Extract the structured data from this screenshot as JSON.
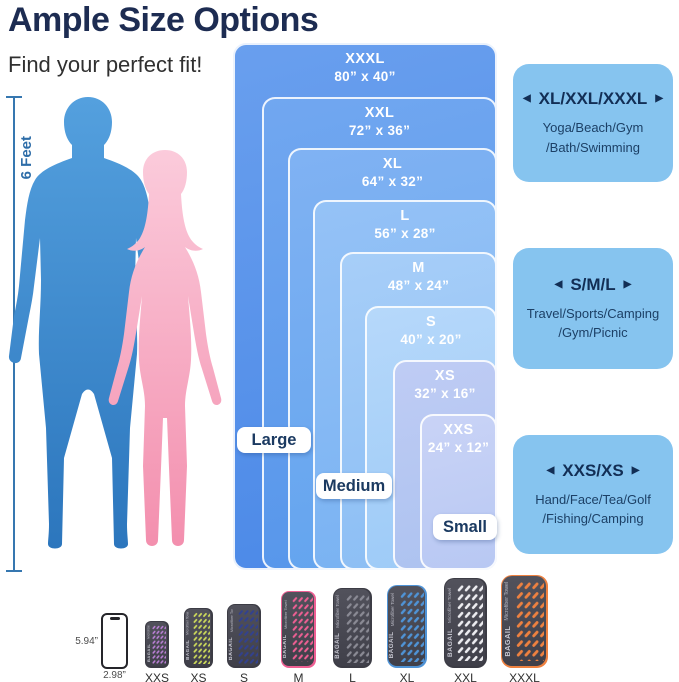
{
  "header": {
    "title": "Ample Size Options",
    "subtitle": "Find your perfect fit!"
  },
  "ruler": {
    "label": "6 Feet"
  },
  "size_chart": {
    "sizes": [
      {
        "name": "XXXL",
        "dims": "80” x 40”"
      },
      {
        "name": "XXL",
        "dims": "72” x 36”"
      },
      {
        "name": "XL",
        "dims": "64” x 32”"
      },
      {
        "name": "L",
        "dims": "56” x 28”"
      },
      {
        "name": "M",
        "dims": "48” x 24”"
      },
      {
        "name": "S",
        "dims": "40” x 20”"
      },
      {
        "name": "XS",
        "dims": "32” x 16”"
      },
      {
        "name": "XXS",
        "dims": "24” x 12”"
      }
    ],
    "pills": [
      "Large",
      "Medium",
      "Small"
    ]
  },
  "use_cases": [
    {
      "heading": "XL/XXL/XXXL",
      "lines": [
        "Yoga/Beach/Gym",
        "/Bath/Swimming"
      ]
    },
    {
      "heading": "S/M/L",
      "lines": [
        "Travel/Sports/Camping",
        "/Gym/Picnic"
      ]
    },
    {
      "heading": "XXS/XS",
      "lines": [
        "Hand/Face/Tea/Golf",
        "/Fishing/Camping"
      ]
    }
  ],
  "icons": {
    "arrow_left": "◀",
    "arrow_right": "▶"
  },
  "phone": {
    "height_label": "5.94”",
    "width_label": "2.98”"
  },
  "brand": {
    "name": "BAGAIL",
    "product": "Microfiber Towel"
  },
  "towels": [
    {
      "label": "XXS",
      "accent": "#bb7fd6",
      "trim": false
    },
    {
      "label": "XS",
      "accent": "#ccd95a",
      "trim": false
    },
    {
      "label": "S",
      "accent": "#32418f",
      "trim": false
    },
    {
      "label": "M",
      "accent": "#ee5f93",
      "trim": true
    },
    {
      "label": "L",
      "accent": "#8a8a94",
      "trim": false
    },
    {
      "label": "XL",
      "accent": "#4f93d6",
      "trim": true
    },
    {
      "label": "XXL",
      "accent": "#ededf1",
      "trim": false
    },
    {
      "label": "XXXL",
      "accent": "#ee8140",
      "trim": true
    }
  ],
  "colors": {
    "title_navy": "#1d2c52",
    "ruler_blue": "#2e6da8",
    "use_case_box_bg": "#86c4ef",
    "navy_text": "#122e55",
    "band_outer_blue": "#4a88e7",
    "band_inner_periwinkle": "#b8c8f3",
    "pill_text": "#1b3a61",
    "male_silhouette": "#3f8ed2",
    "female_silhouette": "#f6a7c0",
    "towel_body": "#3c3c45",
    "towel_face_light": "#52525c",
    "towel_face_dark": "#3f3f49"
  }
}
